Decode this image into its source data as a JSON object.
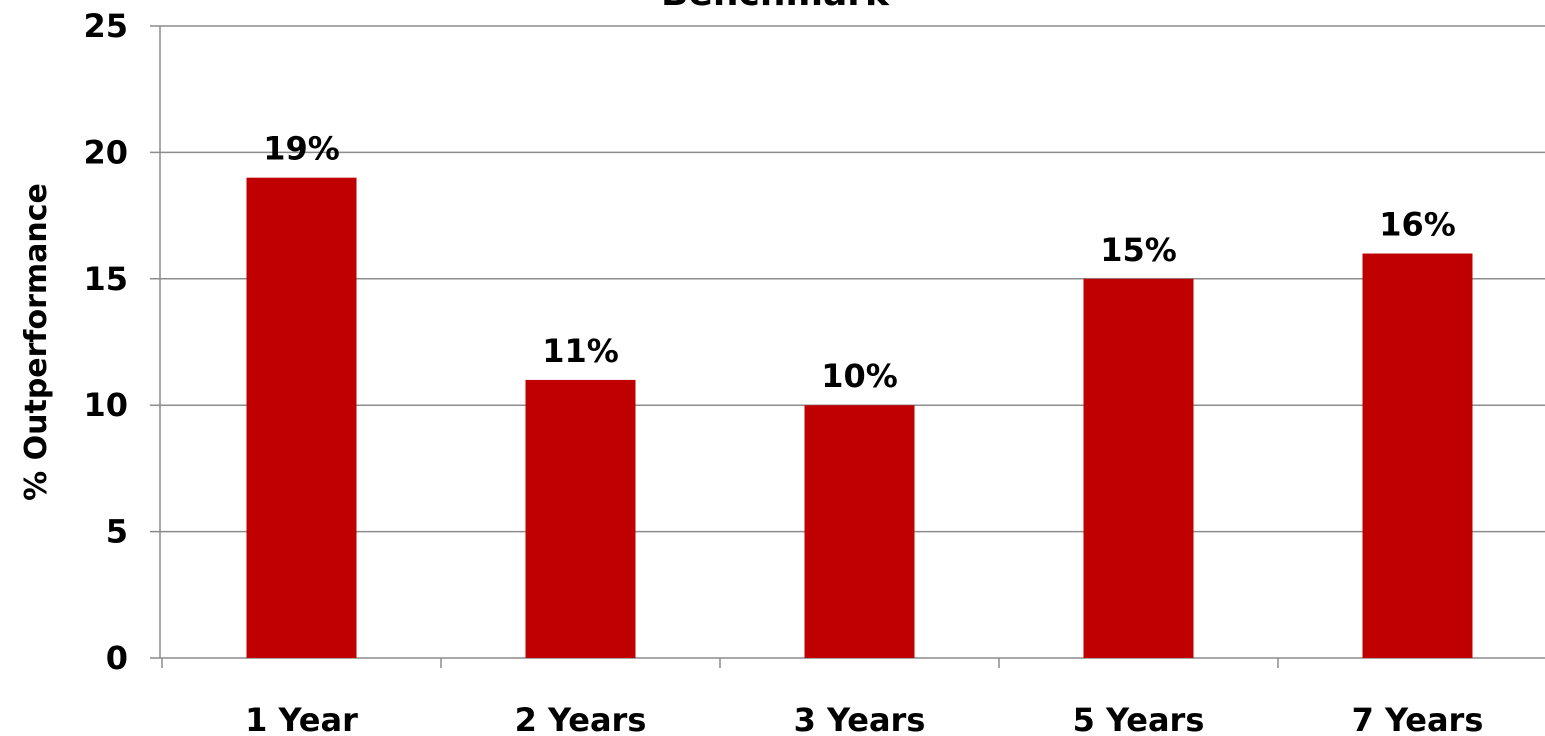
{
  "chart_data": {
    "type": "bar",
    "title": "Benchmark",
    "ylabel": "% Outperformance",
    "categories": [
      "1 Year",
      "2 Years",
      "3 Years",
      "5 Years",
      "7 Years"
    ],
    "values": [
      19,
      11,
      10,
      15,
      16
    ],
    "value_labels": [
      "19%",
      "11%",
      "10%",
      "15%",
      "16%"
    ],
    "color": "#c00000",
    "ylim": [
      0,
      25
    ],
    "yticks": [
      0,
      5,
      10,
      15,
      20,
      25
    ],
    "grid": true
  }
}
